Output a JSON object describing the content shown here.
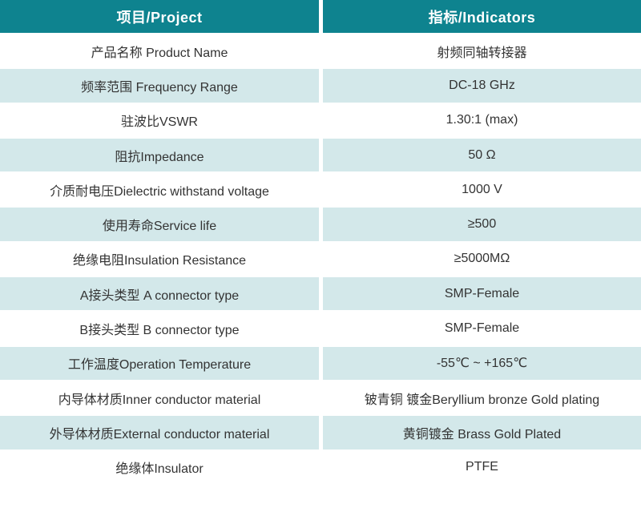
{
  "colors": {
    "header_bg": "#0e838f",
    "header_text": "#ffffff",
    "row_alt_bg": "#d3e8ea",
    "row_bg": "#ffffff",
    "body_text": "#333333"
  },
  "table": {
    "headers": {
      "project": "项目/Project",
      "indicator": "指标/Indicators"
    },
    "rows": [
      {
        "project": "产品名称 Product Name",
        "indicator": "射频同轴转接器"
      },
      {
        "project": "频率范围 Frequency Range",
        "indicator": "DC-18 GHz"
      },
      {
        "project": "驻波比VSWR",
        "indicator": "1.30:1 (max)"
      },
      {
        "project": "阻抗Impedance",
        "indicator": "50 Ω"
      },
      {
        "project": "介质耐电压Dielectric withstand voltage",
        "indicator": "1000 V"
      },
      {
        "project": "使用寿命Service life",
        "indicator": "≥500"
      },
      {
        "project": "绝缘电阻Insulation Resistance",
        "indicator": "≥5000MΩ"
      },
      {
        "project": "A接头类型 A connector type",
        "indicator": "SMP-Female"
      },
      {
        "project": "B接头类型 B connector type",
        "indicator": "SMP-Female"
      },
      {
        "project": "工作温度Operation Temperature",
        "indicator": "-55℃ ~ +165℃"
      },
      {
        "project": "内导体材质Inner conductor material",
        "indicator": "铍青铜 镀金Beryllium bronze Gold plating"
      },
      {
        "project": "外导体材质External conductor material",
        "indicator": "黄铜镀金 Brass Gold Plated"
      },
      {
        "project": "绝缘体Insulator",
        "indicator": "PTFE"
      }
    ]
  }
}
